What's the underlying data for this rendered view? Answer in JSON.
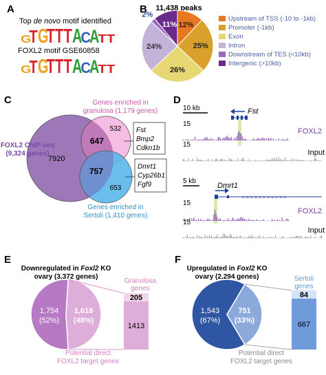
{
  "panels": {
    "A": {
      "letter": "A",
      "motif1_title_pre": "Top ",
      "motif1_title_italic": "de novo",
      "motif1_title_post": " motif identified",
      "motif2_title": "FOXL2 motif GSE60858",
      "motif_sequence": [
        "G",
        "T",
        "G",
        "T",
        "T",
        "T",
        "A",
        "C",
        "A",
        "T",
        "T"
      ]
    },
    "B": {
      "letter": "B",
      "title": "11,438 peaks",
      "legend": [
        {
          "label": "Upstream of TSS (-10 to -1kb)",
          "color": "#e87722"
        },
        {
          "label": "Promoter (-1kb)",
          "color": "#d9a02b"
        },
        {
          "label": "Exon",
          "color": "#e8d873"
        },
        {
          "label": "Intron",
          "color": "#c4b3d9"
        },
        {
          "label": "Downstream of TES (<10kb)",
          "color": "#9b6bbf"
        },
        {
          "label": "Intergenic (>10kb)",
          "color": "#6a2a8c"
        }
      ]
    },
    "C": {
      "letter": "C",
      "granulosa_label_1": "Genes enriched in",
      "granulosa_label_2": "granulosa (1,179 genes)",
      "chip_label_1": "FOXL2 ChIP-seq",
      "chip_label_2": "(9,324 genes)",
      "sertoli_label_1": "Genes enriched in",
      "sertoli_label_2": "Sertoli (1,410 genes)",
      "n_granulosa_only": "532",
      "n_overlap_granulosa": "647",
      "n_chip_only": "7920",
      "n_overlap_sertoli": "757",
      "n_sertoli_only": "653",
      "granulosa_genes": [
        "Fst",
        "Bmp2",
        "Cdkn1b"
      ],
      "sertoli_genes": [
        "Dmrt1",
        "Cyp26b1",
        "Fgf9"
      ]
    },
    "D": {
      "letter": "D",
      "top_scale": "10 kb",
      "top_gene": "Fst",
      "bottom_scale": "5 kb",
      "bottom_gene": "Dmrt1",
      "ymax": "15",
      "track_foxl2": "FOXL2",
      "track_input": "Input"
    },
    "E": {
      "letter": "E",
      "title_1_pre": "Downregulated in ",
      "title_1_italic": "Foxl2",
      "title_1_post": " KO",
      "title_2": "ovary (3,372 genes)",
      "slice_big_n": "1,754",
      "slice_big_pct": "(52%)",
      "slice_small_n": "1,618",
      "slice_small_pct": "(48%)",
      "bar_top": "205",
      "bar_bottom": "1413",
      "bar_label_1": "Granulosa",
      "bar_label_2": "genes",
      "caption_1": "Potential direct",
      "caption_2": "FOXL2 target genes"
    },
    "F": {
      "letter": "F",
      "title_1_pre": "Upregulated in ",
      "title_1_italic": "Foxl2",
      "title_1_post": " KO",
      "title_2": "ovary (2,294 genes)",
      "slice_big_n": "1,543",
      "slice_big_pct": "(67%)",
      "slice_small_n": "751",
      "slice_small_pct": "(33%)",
      "bar_top": "84",
      "bar_bottom": "667",
      "bar_label_1": "Sertoli",
      "bar_label_2": "genes",
      "caption_1": "Potential direct",
      "caption_2": "FOXL2 target genes"
    }
  },
  "chart_data": [
    {
      "type": "pie",
      "title": "11,438 peaks",
      "categories": [
        "Upstream of TSS (-10 to -1kb)",
        "Promoter (-1kb)",
        "Exon",
        "Intron",
        "Downstream of TES (<10kb)",
        "Intergenic (>10kb)"
      ],
      "values": [
        12,
        25,
        26,
        24,
        2,
        11
      ],
      "labels": [
        "12%",
        "25%",
        "26%",
        "24%",
        "2%",
        "11%"
      ],
      "legend": "right"
    },
    {
      "type": "pie",
      "title": "Downregulated in Foxl2 KO ovary (3,372 genes)",
      "categories": [
        "1,754",
        "1,618"
      ],
      "values": [
        52,
        48
      ]
    },
    {
      "type": "pie",
      "title": "Upregulated in Foxl2 KO ovary (2,294 genes)",
      "categories": [
        "1,543",
        "751"
      ],
      "values": [
        67,
        33
      ]
    }
  ]
}
